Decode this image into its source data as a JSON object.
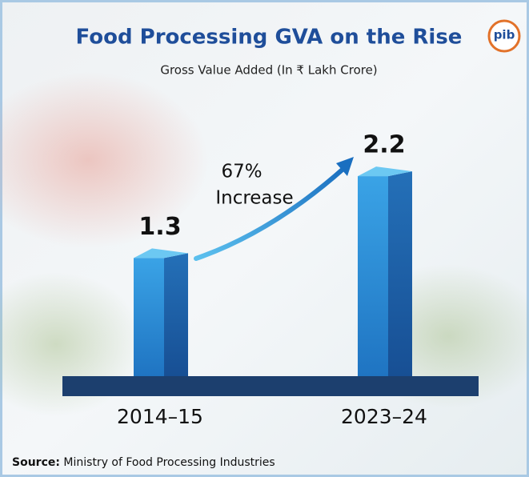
{
  "chart_data": {
    "type": "bar",
    "title": "Food Processing GVA on the Rise",
    "subtitle": "Gross Value Added (In ₹ Lakh Crore)",
    "logo_text": "pib",
    "categories": [
      "2014–15",
      "2023–24"
    ],
    "values": [
      1.3,
      2.2
    ],
    "annotation": [
      "67%",
      "Increase"
    ],
    "source_label": "Source:",
    "source": "Ministry of Food Processing Industries",
    "color": "#2b8ed6"
  }
}
